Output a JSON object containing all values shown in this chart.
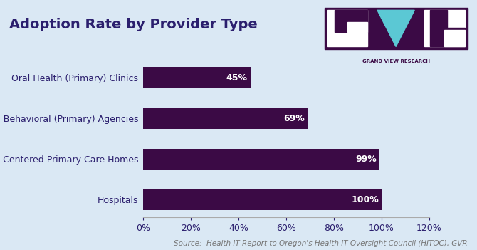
{
  "title": "Adoption Rate by Provider Type",
  "categories": [
    "Hospitals",
    "Patient-Centered Primary Care Homes",
    "Certified Behavioral (Primary) Agencies",
    "Oral Health (Primary) Clinics"
  ],
  "values": [
    100,
    99,
    69,
    45
  ],
  "bar_color": "#3b0a45",
  "bar_labels": [
    "100%",
    "99%",
    "69%",
    "45%"
  ],
  "xlim": [
    0,
    120
  ],
  "xticks": [
    0,
    20,
    40,
    60,
    80,
    100,
    120
  ],
  "xtick_labels": [
    "0%",
    "20%",
    "40%",
    "60%",
    "80%",
    "100%",
    "120%"
  ],
  "background_color": "#dae8f4",
  "plot_bg_color": "#dae8f4",
  "title_color": "#2b1f6e",
  "ylabel_color": "#2b1f6e",
  "title_fontsize": 14,
  "label_fontsize": 9,
  "tick_fontsize": 9,
  "source_text": "Source:  Health IT Report to Oregon's Health IT Oversight Council (HITOC), GVR",
  "source_fontsize": 7.5,
  "source_color": "#777777",
  "logo_bg": "#3b0a45",
  "logo_cyan": "#5bc8d4",
  "logo_text": "GRAND VIEW RESEARCH",
  "logo_text_color": "#3b0a45"
}
